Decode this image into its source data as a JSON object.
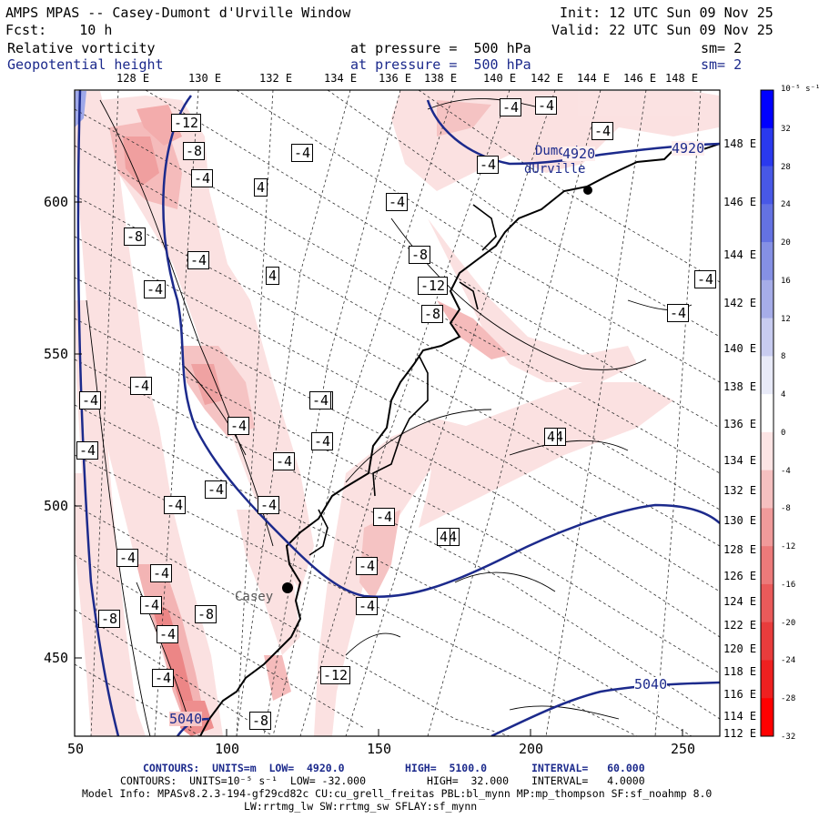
{
  "header": {
    "title": "AMPS MPAS -- Casey-Dumont d'Urville Window",
    "init": "Init: 12 UTC Sun 09 Nov 25",
    "fcst": "Fcst:    10 h",
    "valid": "Valid: 22 UTC Sun 09 Nov 25",
    "field1": "Relative vorticity",
    "field1_level": "at pressure =  500 hPa",
    "field1_sm": "sm= 2",
    "field2": "Geopotential height",
    "field2_level": "at pressure =  500 hPa",
    "field2_sm": "sm= 2"
  },
  "axes": {
    "top_longitudes": [
      "128 E",
      "130 E",
      "132 E",
      "134 E",
      "136 E",
      "138 E",
      "140 E",
      "142 E",
      "144 E",
      "146 E",
      "148 E"
    ],
    "right_longitudes": [
      "148 E",
      "146 E",
      "144 E",
      "142 E",
      "140 E",
      "138 E",
      "136 E",
      "134 E",
      "132 E",
      "130 E",
      "128 E",
      "126 E",
      "124 E",
      "122 E",
      "120 E",
      "118 E",
      "116 E",
      "114 E",
      "112 E"
    ],
    "left_ticks": [
      "600",
      "550",
      "500",
      "450"
    ],
    "bottom_ticks": [
      "50",
      "100",
      "150",
      "200",
      "250"
    ]
  },
  "colorbar": {
    "unit_label": "10⁻⁵ s⁻¹",
    "labels": [
      "32",
      "28",
      "24",
      "20",
      "16",
      "12",
      "8",
      "4",
      "0",
      "-4",
      "-8",
      "-12",
      "-16",
      "-20",
      "-24",
      "-28",
      "-32"
    ],
    "colors": [
      "#0000ff",
      "#2a39ee",
      "#4858e6",
      "#6472e2",
      "#8590e4",
      "#a6ade8",
      "#c8ccf0",
      "#e8eaf8",
      "#ffffff",
      "#fce4e4",
      "#f5c0c0",
      "#f09a9a",
      "#ec7a7a",
      "#ea5a5a",
      "#e83c3c",
      "#ee2020",
      "#ff0000"
    ]
  },
  "map": {
    "stations": [
      {
        "name": "Dumont",
        "name2": "dUrville"
      },
      {
        "name": "Casey"
      }
    ],
    "height_labels": [
      "4920",
      "4920",
      "5040",
      "5040"
    ],
    "vort_labels": [
      "-12",
      "-8",
      "-4",
      "4",
      "-4",
      "-8",
      "-4",
      "-4",
      "4",
      "-4",
      "-8",
      "-12",
      "-8",
      "-4",
      "-4",
      "-4",
      "-4",
      "-4",
      "-4",
      "-4",
      "-4",
      "-4",
      "-4",
      "-4",
      "-4",
      "-4",
      "-4",
      "-4",
      "-4",
      "-4",
      "-8",
      "-8",
      "-4",
      "-4",
      "-4",
      "-4",
      "-8",
      "-8",
      "-12",
      "-8",
      "-4",
      "-4",
      "-4",
      "-4",
      "4",
      "4",
      "-4",
      "-4"
    ]
  },
  "footer": {
    "line1_a": "CONTOURS:  UNITS=m  LOW=  4920.0",
    "line1_b": "HIGH=  5100.0",
    "line1_c": "INTERVAL=   60.000",
    "line2_a": "CONTOURS:  UNITS=10⁻⁵ s⁻¹  LOW= -32.000",
    "line2_b": "HIGH=  32.000",
    "line2_c": "INTERVAL=   4.0000",
    "model_info": "Model Info: MPASv8.2.3-194-gf29cd82c CU:cu_grell_freitas PBL:bl_mynn MP:mp_thompson SF:sf_noahmp 8.0",
    "model_info2": "LW:rrtmg_lw SW:rrtmg_sw SFLAY:sf_mynn"
  }
}
